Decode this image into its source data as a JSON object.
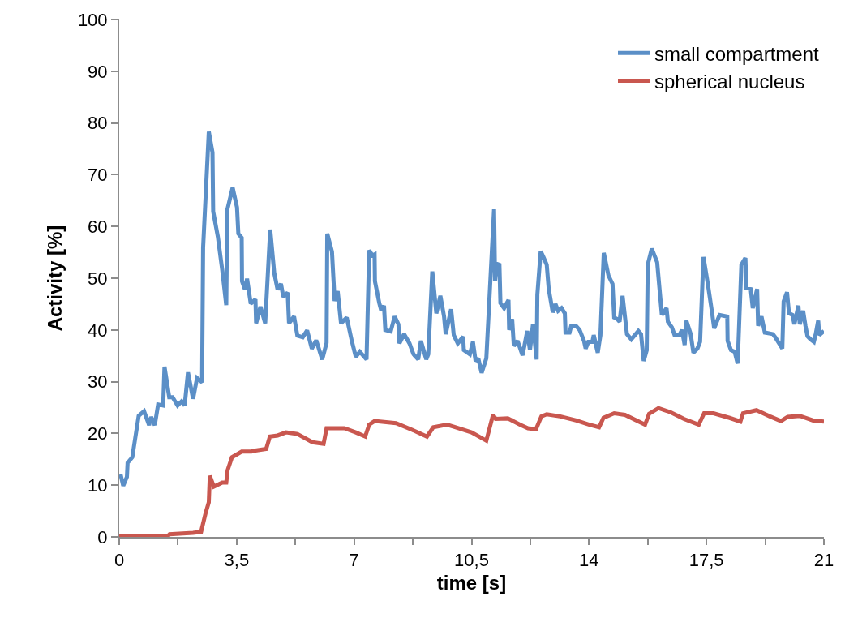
{
  "chart_data": {
    "type": "line",
    "xlabel": "time [s]",
    "ylabel": "Activity [%]",
    "xlim": [
      0,
      21
    ],
    "ylim": [
      0,
      100
    ],
    "xticks": [
      0,
      {
        "value": 1.75,
        "label": null
      },
      {
        "value": 3.5,
        "label": "3,5"
      },
      {
        "value": 5.25,
        "label": null
      },
      7,
      {
        "value": 8.75,
        "label": null
      },
      {
        "value": 10.5,
        "label": "10,5"
      },
      {
        "value": 12.25,
        "label": null
      },
      14,
      {
        "value": 15.75,
        "label": null
      },
      {
        "value": 17.5,
        "label": "17,5"
      },
      {
        "value": 19.25,
        "label": null
      },
      21
    ],
    "yticks": [
      0,
      10,
      20,
      30,
      40,
      50,
      60,
      70,
      80,
      90,
      100
    ],
    "legend": "top right",
    "marker": "none",
    "line_style": "solid",
    "series": [
      {
        "name": "small compartment",
        "color": "#5b8fc7",
        "x": [
          0.04,
          0.12,
          0.23,
          0.25,
          0.39,
          0.58,
          0.74,
          0.89,
          0.95,
          1.06,
          1.16,
          1.31,
          1.35,
          1.49,
          1.59,
          1.74,
          1.86,
          1.95,
          2.05,
          2.2,
          2.32,
          2.47,
          2.5,
          2.67,
          2.78,
          2.8,
          2.94,
          3.07,
          3.19,
          3.22,
          3.38,
          3.51,
          3.55,
          3.65,
          3.66,
          3.75,
          3.81,
          3.92,
          4.06,
          4.08,
          4.21,
          4.35,
          4.5,
          4.62,
          4.72,
          4.82,
          4.89,
          5.02,
          5.06,
          5.21,
          5.31,
          5.47,
          5.6,
          5.74,
          5.87,
          6.05,
          6.18,
          6.2,
          6.34,
          6.42,
          6.51,
          6.61,
          6.78,
          6.93,
          7.05,
          7.17,
          7.37,
          7.45,
          7.54,
          7.61,
          7.62,
          7.75,
          7.81,
          7.89,
          7.93,
          8.09,
          8.21,
          8.32,
          8.35,
          8.49,
          8.65,
          8.77,
          8.91,
          8.99,
          9.15,
          9.21,
          9.33,
          9.45,
          9.57,
          9.68,
          9.73,
          9.89,
          9.97,
          10.09,
          10.25,
          10.27,
          10.45,
          10.54,
          10.62,
          10.7,
          10.8,
          10.94,
          11.17,
          11.2,
          11.25,
          11.33,
          11.36,
          11.47,
          11.6,
          11.62,
          11.71,
          11.76,
          11.87,
          12.02,
          12.16,
          12.24,
          12.33,
          12.44,
          12.46,
          12.56,
          12.64,
          12.74,
          12.8,
          12.92,
          13.0,
          13.08,
          13.18,
          13.28,
          13.3,
          13.42,
          13.47,
          13.61,
          13.72,
          13.85,
          13.9,
          13.98,
          14.1,
          14.14,
          14.26,
          14.34,
          14.44,
          14.58,
          14.7,
          14.75,
          14.84,
          14.91,
          15.0,
          15.13,
          15.26,
          15.47,
          15.55,
          15.63,
          15.72,
          15.75,
          15.87,
          16.03,
          16.17,
          16.31,
          16.35,
          16.47,
          16.55,
          16.69,
          16.77,
          16.85,
          16.9,
          17.03,
          17.11,
          17.23,
          17.31,
          17.41,
          17.54,
          17.67,
          17.73,
          17.89,
          18.12,
          18.13,
          18.23,
          18.34,
          18.43,
          18.54,
          18.66,
          18.69,
          18.82,
          18.88,
          19.01,
          19.04,
          19.14,
          19.24,
          19.48,
          19.56,
          19.76,
          19.8,
          19.9,
          19.96,
          20.06,
          20.12,
          20.24,
          20.28,
          20.38,
          20.45,
          20.51,
          20.6,
          20.7,
          20.75,
          20.83,
          20.86,
          21.0
        ],
        "values": [
          12.1,
          9.9,
          11.6,
          14.3,
          15.4,
          23.4,
          24.3,
          21.6,
          23.2,
          21.6,
          25.6,
          25.4,
          32.9,
          27.0,
          27.0,
          25.4,
          26.2,
          25.4,
          31.8,
          26.7,
          30.7,
          29.9,
          55.9,
          78.3,
          74.3,
          62.9,
          58.0,
          51.6,
          44.8,
          63.2,
          67.5,
          63.7,
          58.6,
          57.8,
          49.4,
          47.8,
          49.9,
          45.1,
          45.9,
          41.3,
          44.5,
          41.3,
          59.4,
          51.0,
          47.8,
          48.9,
          46.4,
          47.2,
          41.3,
          42.6,
          38.9,
          38.6,
          39.9,
          36.4,
          38.0,
          34.3,
          37.5,
          58.6,
          55.1,
          45.6,
          47.5,
          41.3,
          42.4,
          37.9,
          34.8,
          35.8,
          34.3,
          55.4,
          54.4,
          54.6,
          49.4,
          45.2,
          43.7,
          44.7,
          40.0,
          39.7,
          42.6,
          41.1,
          37.4,
          39.2,
          37.4,
          35.3,
          34.3,
          37.9,
          34.3,
          35.3,
          51.3,
          43.2,
          46.6,
          42.6,
          39.2,
          44.0,
          39.0,
          37.4,
          38.7,
          36.1,
          35.3,
          37.7,
          34.0,
          34.5,
          31.7,
          34.5,
          63.3,
          49.4,
          52.8,
          52.6,
          45.2,
          44.2,
          45.8,
          40.0,
          42.1,
          36.9,
          37.9,
          35.1,
          39.8,
          36.1,
          41.1,
          34.3,
          46.8,
          55.2,
          54.1,
          52.6,
          47.9,
          43.4,
          45.0,
          43.7,
          44.2,
          43.2,
          39.5,
          39.5,
          40.8,
          40.8,
          40.0,
          37.9,
          36.4,
          37.7,
          37.7,
          39.0,
          35.6,
          39.0,
          54.9,
          50.5,
          48.9,
          42.4,
          42.1,
          41.6,
          46.6,
          39.2,
          38.2,
          39.8,
          39.2,
          34.0,
          36.1,
          52.6,
          55.7,
          53.1,
          42.9,
          44.2,
          41.6,
          40.5,
          39.0,
          39.0,
          40.0,
          37.1,
          41.8,
          39.2,
          35.6,
          36.4,
          37.7,
          54.1,
          48.9,
          43.2,
          40.3,
          42.9,
          42.6,
          37.9,
          36.1,
          35.8,
          33.5,
          52.6,
          53.9,
          48.1,
          47.9,
          44.2,
          47.9,
          40.8,
          42.6,
          39.5,
          39.2,
          38.5,
          36.4,
          45.5,
          47.3,
          43.2,
          42.9,
          41.1,
          44.7,
          41.1,
          43.7,
          40.8,
          38.8,
          38.2,
          37.7,
          39.0,
          41.8,
          39.0,
          39.8
        ]
      },
      {
        "name": "spherical nucleus",
        "color": "#c9574f",
        "x": [
          0,
          1.45,
          1.5,
          2.2,
          2.44,
          2.57,
          2.67,
          2.7,
          2.82,
          3.07,
          3.19,
          3.23,
          3.36,
          3.65,
          3.94,
          4.06,
          4.38,
          4.49,
          4.72,
          4.97,
          5.31,
          5.76,
          6.09,
          6.18,
          6.71,
          7.05,
          7.33,
          7.45,
          7.61,
          8.25,
          8.73,
          9.17,
          9.36,
          9.77,
          10.01,
          10.5,
          10.94,
          11.14,
          11.22,
          11.58,
          11.94,
          12.18,
          12.42,
          12.58,
          12.74,
          13.14,
          13.62,
          14.01,
          14.3,
          14.43,
          14.75,
          15.07,
          15.67,
          15.79,
          16.07,
          16.43,
          16.83,
          17.27,
          17.43,
          17.71,
          18.19,
          18.51,
          18.59,
          18.99,
          19.39,
          19.72,
          19.92,
          20.28,
          20.68,
          21.0
        ],
        "values": [
          0.2,
          0.2,
          0.5,
          0.8,
          1.0,
          4.5,
          6.7,
          11.8,
          9.7,
          10.5,
          10.5,
          12.9,
          15.4,
          16.5,
          16.5,
          16.7,
          17.0,
          19.4,
          19.6,
          20.2,
          19.9,
          18.3,
          18.0,
          21.0,
          21.0,
          20.2,
          19.4,
          21.7,
          22.4,
          22.0,
          20.7,
          19.4,
          21.2,
          21.7,
          21.2,
          20.2,
          18.6,
          23.6,
          22.8,
          22.9,
          21.7,
          21.0,
          20.8,
          23.3,
          23.7,
          23.3,
          22.5,
          21.7,
          21.2,
          23.0,
          23.9,
          23.6,
          21.7,
          23.8,
          24.9,
          24.1,
          22.8,
          21.7,
          23.9,
          23.9,
          23.0,
          22.3,
          23.9,
          24.5,
          23.3,
          22.4,
          23.2,
          23.4,
          22.5,
          22.3
        ]
      }
    ]
  }
}
